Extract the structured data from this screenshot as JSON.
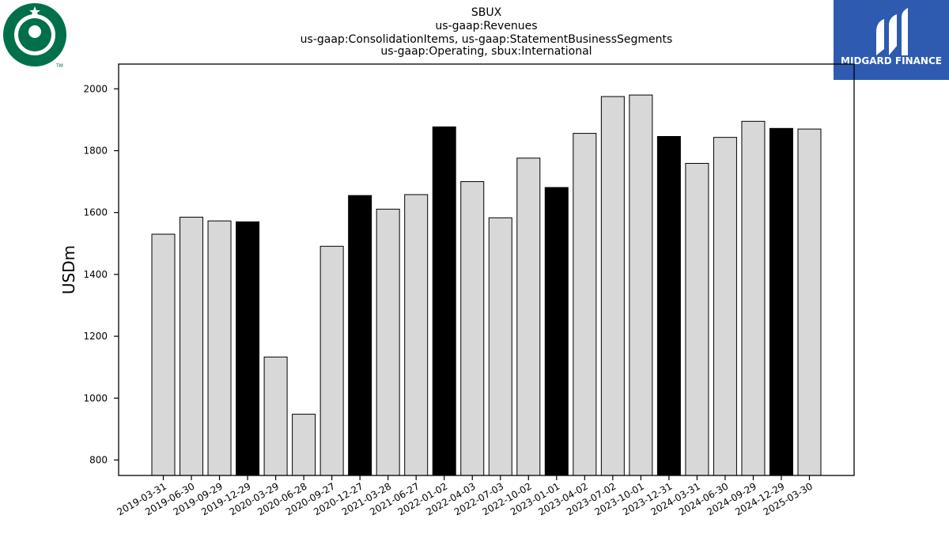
{
  "logos": {
    "left": {
      "name": "Starbucks",
      "color": "#00704A"
    },
    "right": {
      "text": "MIDGARD FINANCE",
      "bg_color": "#2E5BAF"
    }
  },
  "chart_data": {
    "type": "bar",
    "title_lines": [
      "SBUX",
      "us-gaap:Revenues",
      "us-gaap:ConsolidationItems, us-gaap:StatementBusinessSegments",
      "us-gaap:Operating, sbux:International"
    ],
    "xlabel": "",
    "ylabel": "USDm",
    "ylim": [
      750,
      2080
    ],
    "yticks": [
      800,
      1000,
      1200,
      1400,
      1600,
      1800,
      2000
    ],
    "grid": false,
    "categories": [
      "2019-03-31",
      "2019-06-30",
      "2019-09-29",
      "2019-12-29",
      "2020-03-29",
      "2020-06-28",
      "2020-09-27",
      "2020-12-27",
      "2021-03-28",
      "2021-06-27",
      "2022-01-02",
      "2022-04-03",
      "2022-07-03",
      "2022-10-02",
      "2023-01-01",
      "2023-04-02",
      "2023-07-02",
      "2023-10-01",
      "2023-12-31",
      "2024-03-31",
      "2024-06-30",
      "2024-09-29",
      "2024-12-29",
      "2025-03-30"
    ],
    "values": [
      1530,
      1585,
      1573,
      1570,
      1133,
      948,
      1491,
      1655,
      1611,
      1658,
      1877,
      1700,
      1583,
      1776,
      1681,
      1856,
      1975,
      1980,
      1846,
      1759,
      1843,
      1895,
      1872,
      1870
    ],
    "highlighted": [
      false,
      false,
      false,
      true,
      false,
      false,
      false,
      true,
      false,
      false,
      true,
      false,
      false,
      false,
      true,
      false,
      false,
      false,
      true,
      false,
      false,
      false,
      true,
      false
    ],
    "colors": {
      "default": "#d8d8d8",
      "highlight": "#000000",
      "edge": "#000000"
    }
  }
}
